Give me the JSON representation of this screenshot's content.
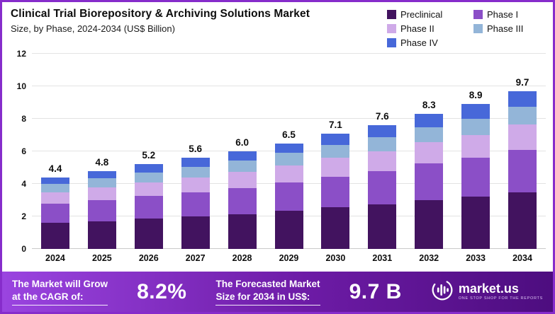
{
  "chart_data": {
    "type": "bar",
    "stacked": true,
    "title": "Clinical Trial Biorepository & Archiving Solutions Market",
    "subtitle": "Size, by Phase, 2024-2034 (US$ Billion)",
    "unit": "US$ Billion",
    "categories": [
      "2024",
      "2025",
      "2026",
      "2027",
      "2028",
      "2029",
      "2030",
      "2031",
      "2032",
      "2033",
      "2034"
    ],
    "series": [
      {
        "name": "Preclinical",
        "color": "#42135f",
        "values": [
          1.6,
          1.7,
          1.85,
          2.0,
          2.15,
          2.35,
          2.55,
          2.75,
          3.0,
          3.2,
          3.5
        ]
      },
      {
        "name": "Phase I",
        "color": "#8b4fc7",
        "values": [
          1.2,
          1.3,
          1.4,
          1.5,
          1.6,
          1.75,
          1.9,
          2.05,
          2.25,
          2.4,
          2.6
        ]
      },
      {
        "name": "Phase II",
        "color": "#cfaae8",
        "values": [
          0.7,
          0.8,
          0.85,
          0.9,
          1.0,
          1.05,
          1.15,
          1.2,
          1.3,
          1.4,
          1.55
        ]
      },
      {
        "name": "Phase III",
        "color": "#93b5d8",
        "values": [
          0.5,
          0.55,
          0.6,
          0.65,
          0.7,
          0.75,
          0.8,
          0.85,
          0.95,
          1.0,
          1.1
        ]
      },
      {
        "name": "Phase IV",
        "color": "#4768d9",
        "values": [
          0.4,
          0.45,
          0.5,
          0.55,
          0.55,
          0.6,
          0.7,
          0.75,
          0.8,
          0.9,
          0.95
        ]
      }
    ],
    "totals": [
      "4.4",
      "4.8",
      "5.2",
      "5.6",
      "6.0",
      "6.5",
      "7.1",
      "7.6",
      "8.3",
      "8.9",
      "9.7"
    ],
    "ylim": [
      0,
      12
    ],
    "yticks": [
      0,
      2,
      4,
      6,
      8,
      10,
      12
    ],
    "grid": true,
    "legend_position": "top-right"
  },
  "colors": {
    "frame_border": "#862ccb",
    "banner_gradient_start": "#9a44e0",
    "banner_gradient_end": "#4d0d7f"
  },
  "banner": {
    "cagr": {
      "line1": "The Market will Grow",
      "line2": "at the CAGR of:",
      "value": "8.2%"
    },
    "forecast": {
      "line1": "The Forecasted Market",
      "line2": "Size for 2034 in US$:",
      "value": "9.7 B"
    },
    "brand": {
      "name": "market.us",
      "tagline": "ONE STOP SHOP FOR THE REPORTS"
    }
  }
}
